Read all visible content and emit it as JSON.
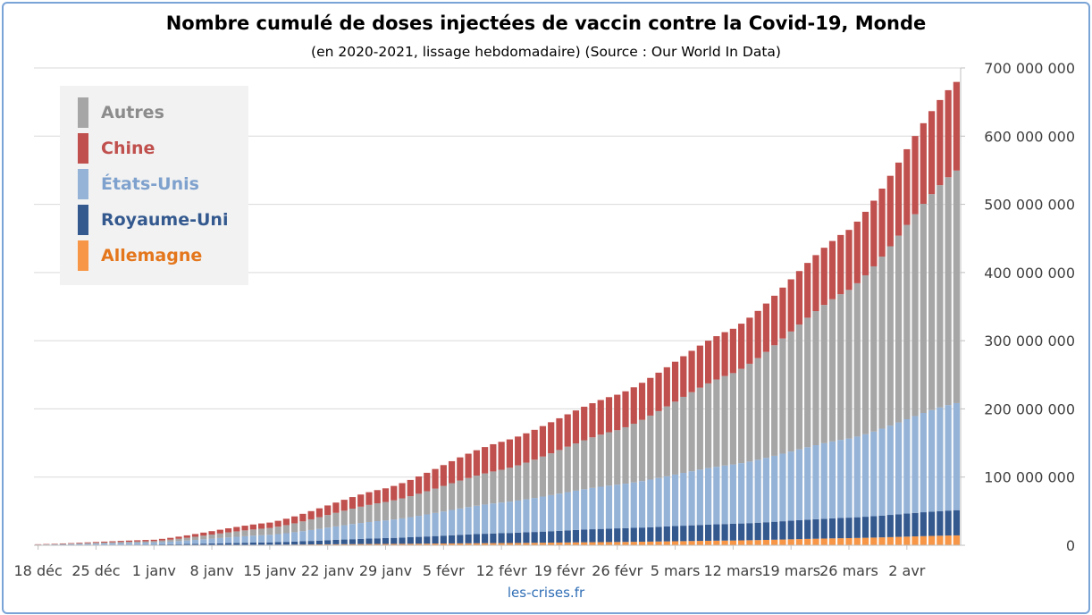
{
  "colors": {
    "allemagne": "#f79646",
    "royaume_uni": "#34598f",
    "etats_unis": "#95b3d7",
    "chine": "#c0504d",
    "autres": "#a6a6a6",
    "frame": "#7aa3d6",
    "source": "#2f6eb5"
  },
  "chart_data": {
    "type": "bar",
    "stacked": true,
    "title": "Nombre cumulé de doses injectées de vaccin contre la Covid-19, Monde",
    "subtitle": "(en 2020-2021, lissage hebdomadaire) (Source : Our World In Data)",
    "source": "les-crises.fr",
    "yaxis_side": "right",
    "ylim": [
      0,
      700000000
    ],
    "y_ticks": [
      "0",
      "100 000 000",
      "200 000 000",
      "300 000 000",
      "400 000 000",
      "500 000 000",
      "600 000 000",
      "700 000 000"
    ],
    "x_start": "2020-12-18",
    "x_end": "2021-04-08",
    "x_ticks": [
      "18 déc",
      "25 déc",
      "1 janv",
      "8 janv",
      "15 janv",
      "22 janv",
      "29 janv",
      "5 févr",
      "12 févr",
      "19 févr",
      "26 févr",
      "5 mars",
      "12 mars",
      "19 mars",
      "26 mars",
      "2 avr"
    ],
    "grid": true,
    "legend_position": "top-left",
    "legend": [
      "Autres",
      "Chine",
      "États-Unis",
      "Royaume-Uni",
      "Allemagne"
    ],
    "series_keypoints": [
      {
        "name": "Allemagne",
        "color": "#f79646",
        "points": [
          [
            "2020-12-18",
            0
          ],
          [
            "2021-01-01",
            100000
          ],
          [
            "2021-01-15",
            800000
          ],
          [
            "2021-01-29",
            2000000
          ],
          [
            "2021-02-12",
            3200000
          ],
          [
            "2021-02-26",
            4800000
          ],
          [
            "2021-03-12",
            7000000
          ],
          [
            "2021-03-26",
            10500000
          ],
          [
            "2021-04-08",
            14500000
          ]
        ]
      },
      {
        "name": "Royaume-Uni",
        "color": "#34598f",
        "points": [
          [
            "2020-12-18",
            300000
          ],
          [
            "2021-01-01",
            1000000
          ],
          [
            "2021-01-15",
            3500000
          ],
          [
            "2021-01-29",
            8500000
          ],
          [
            "2021-02-12",
            14500000
          ],
          [
            "2021-02-26",
            20000000
          ],
          [
            "2021-03-12",
            24500000
          ],
          [
            "2021-03-26",
            30000000
          ],
          [
            "2021-04-08",
            37000000
          ]
        ]
      },
      {
        "name": "États-Unis",
        "color": "#95b3d7",
        "points": [
          [
            "2020-12-18",
            500000
          ],
          [
            "2021-01-01",
            3000000
          ],
          [
            "2021-01-15",
            11000000
          ],
          [
            "2021-01-29",
            26000000
          ],
          [
            "2021-02-12",
            45000000
          ],
          [
            "2021-02-26",
            64000000
          ],
          [
            "2021-03-12",
            87000000
          ],
          [
            "2021-03-26",
            116000000
          ],
          [
            "2021-04-08",
            157000000
          ]
        ]
      },
      {
        "name": "Autres",
        "color": "#a6a6a6",
        "points": [
          [
            "2020-12-18",
            200000
          ],
          [
            "2021-01-01",
            2000000
          ],
          [
            "2021-01-15",
            10000000
          ],
          [
            "2021-01-29",
            27000000
          ],
          [
            "2021-02-12",
            48000000
          ],
          [
            "2021-02-26",
            80000000
          ],
          [
            "2021-03-12",
            134000000
          ],
          [
            "2021-03-26",
            218000000
          ],
          [
            "2021-04-08",
            341000000
          ]
        ]
      },
      {
        "name": "Chine",
        "color": "#c0504d",
        "points": [
          [
            "2020-12-18",
            500000
          ],
          [
            "2021-01-01",
            2000000
          ],
          [
            "2021-01-15",
            8000000
          ],
          [
            "2021-01-29",
            20000000
          ],
          [
            "2021-02-12",
            41000000
          ],
          [
            "2021-02-26",
            52000000
          ],
          [
            "2021-03-12",
            65000000
          ],
          [
            "2021-03-26",
            88000000
          ],
          [
            "2021-04-08",
            130000000
          ]
        ]
      }
    ]
  }
}
